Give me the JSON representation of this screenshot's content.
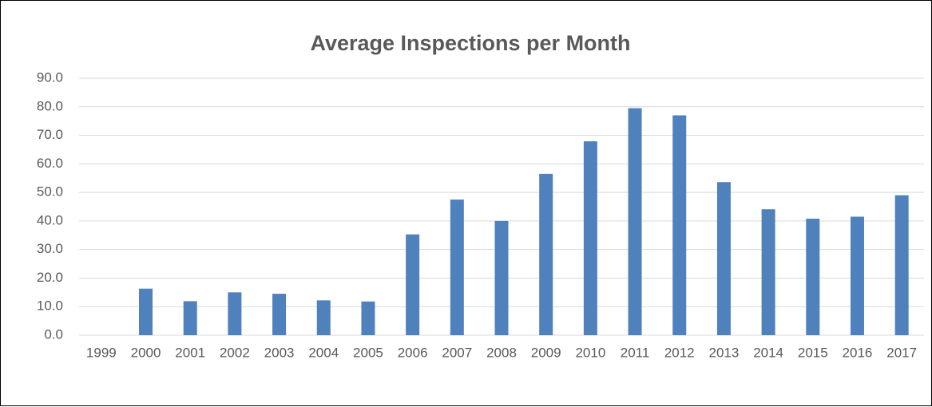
{
  "chart_data": {
    "type": "bar",
    "title": "Average Inspections per Month",
    "categories": [
      "1999",
      "2000",
      "2001",
      "2002",
      "2003",
      "2004",
      "2005",
      "2006",
      "2007",
      "2008",
      "2009",
      "2010",
      "2011",
      "2012",
      "2013",
      "2014",
      "2015",
      "2016",
      "2017"
    ],
    "values": [
      0,
      16.3,
      11.9,
      15.0,
      14.5,
      12.2,
      11.8,
      35.3,
      47.5,
      40.0,
      56.5,
      67.9,
      79.5,
      77.0,
      53.6,
      44.1,
      40.8,
      41.5,
      49.0
    ],
    "color": "#4f81bd",
    "ylim": [
      0,
      90
    ],
    "yticks": [
      {
        "value": 0,
        "label": "0.0"
      },
      {
        "value": 10,
        "label": "10.0"
      },
      {
        "value": 20,
        "label": "20.0"
      },
      {
        "value": 30,
        "label": "30.0"
      },
      {
        "value": 40,
        "label": "40.0"
      },
      {
        "value": 50,
        "label": "50.0"
      },
      {
        "value": 60,
        "label": "60.0"
      },
      {
        "value": 70,
        "label": "70.0"
      },
      {
        "value": 80,
        "label": "80.0"
      },
      {
        "value": 90,
        "label": "90.0"
      }
    ],
    "grid": true
  }
}
